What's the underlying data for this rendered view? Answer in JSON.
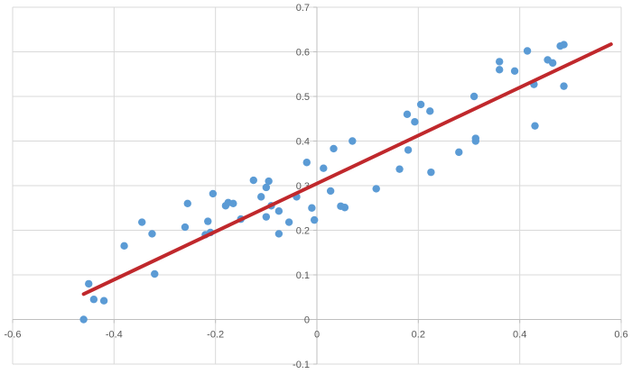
{
  "chart_data": {
    "type": "scatter",
    "title": "",
    "xlabel": "",
    "ylabel": "",
    "xlim": [
      -0.6,
      0.6
    ],
    "ylim": [
      -0.1,
      0.7
    ],
    "x_ticks": [
      -0.6,
      -0.4,
      -0.2,
      0,
      0.2,
      0.4,
      0.6
    ],
    "y_ticks": [
      -0.1,
      0,
      0.1,
      0.2,
      0.3,
      0.4,
      0.5,
      0.6,
      0.7
    ],
    "x_tick_labels": [
      "-0.6",
      "-0.4",
      "-0.2",
      "0",
      "0.2",
      "0.4",
      "0.6"
    ],
    "y_tick_labels": [
      "-0.1",
      "0",
      "0.1",
      "0.2",
      "0.3",
      "0.4",
      "0.5",
      "0.6",
      "0.7"
    ],
    "grid": true,
    "colors": {
      "points": "#5b9bd5",
      "trendline": "#c0282c",
      "grid": "#d9d9d9",
      "axis": "#bfbfbf"
    },
    "series": [
      {
        "points": [
          [
            -0.46,
            0.0
          ],
          [
            -0.45,
            0.08
          ],
          [
            -0.44,
            0.045
          ],
          [
            -0.42,
            0.042
          ],
          [
            -0.38,
            0.165
          ],
          [
            -0.345,
            0.218
          ],
          [
            -0.325,
            0.192
          ],
          [
            -0.32,
            0.102
          ],
          [
            -0.26,
            0.207
          ],
          [
            -0.255,
            0.26
          ],
          [
            -0.22,
            0.19
          ],
          [
            -0.215,
            0.22
          ],
          [
            -0.21,
            0.195
          ],
          [
            -0.205,
            0.282
          ],
          [
            -0.18,
            0.255
          ],
          [
            -0.175,
            0.262
          ],
          [
            -0.165,
            0.26
          ],
          [
            -0.15,
            0.225
          ],
          [
            -0.125,
            0.312
          ],
          [
            -0.11,
            0.275
          ],
          [
            -0.1,
            0.296
          ],
          [
            -0.1,
            0.23
          ],
          [
            -0.095,
            0.31
          ],
          [
            -0.09,
            0.255
          ],
          [
            -0.075,
            0.192
          ],
          [
            -0.075,
            0.243
          ],
          [
            -0.055,
            0.218
          ],
          [
            -0.04,
            0.275
          ],
          [
            -0.02,
            0.352
          ],
          [
            -0.01,
            0.25
          ],
          [
            -0.005,
            0.223
          ],
          [
            0.013,
            0.339
          ],
          [
            0.027,
            0.288
          ],
          [
            0.033,
            0.383
          ],
          [
            0.047,
            0.254
          ],
          [
            0.055,
            0.251
          ],
          [
            0.07,
            0.4
          ],
          [
            0.117,
            0.293
          ],
          [
            0.163,
            0.337
          ],
          [
            0.178,
            0.46
          ],
          [
            0.18,
            0.38
          ],
          [
            0.193,
            0.443
          ],
          [
            0.205,
            0.482
          ],
          [
            0.223,
            0.467
          ],
          [
            0.225,
            0.33
          ],
          [
            0.28,
            0.375
          ],
          [
            0.31,
            0.5
          ],
          [
            0.313,
            0.406
          ],
          [
            0.313,
            0.4
          ],
          [
            0.36,
            0.578
          ],
          [
            0.36,
            0.56
          ],
          [
            0.39,
            0.557
          ],
          [
            0.415,
            0.602
          ],
          [
            0.428,
            0.527
          ],
          [
            0.43,
            0.434
          ],
          [
            0.455,
            0.582
          ],
          [
            0.465,
            0.575
          ],
          [
            0.48,
            0.613
          ],
          [
            0.487,
            0.616
          ],
          [
            0.487,
            0.523
          ]
        ]
      }
    ],
    "trendline": {
      "type": "linear",
      "x_range": [
        -0.46,
        0.58
      ],
      "y_range": [
        0.057,
        0.617
      ]
    }
  }
}
